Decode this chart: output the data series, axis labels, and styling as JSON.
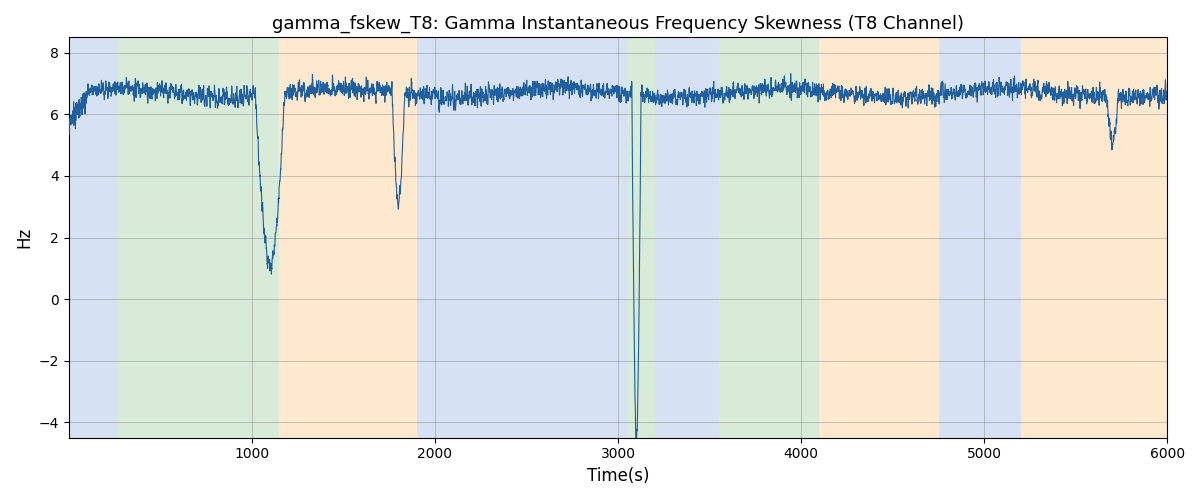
{
  "title": "gamma_fskew_T8: Gamma Instantaneous Frequency Skewness (T8 Channel)",
  "xlabel": "Time(s)",
  "ylabel": "Hz",
  "xlim": [
    0,
    6000
  ],
  "ylim": [
    -4.5,
    8.5
  ],
  "yticks": [
    -4,
    -2,
    0,
    2,
    4,
    6,
    8
  ],
  "xticks": [
    1000,
    2000,
    3000,
    4000,
    5000,
    6000
  ],
  "line_color": "#1f5f9e",
  "line_width": 0.8,
  "bg_regions": [
    {
      "start": 0,
      "end": 270,
      "color": "#aec6e8",
      "alpha": 0.5
    },
    {
      "start": 270,
      "end": 1150,
      "color": "#b2d8b2",
      "alpha": 0.5
    },
    {
      "start": 1150,
      "end": 1900,
      "color": "#ffd59e",
      "alpha": 0.5
    },
    {
      "start": 1900,
      "end": 3050,
      "color": "#aec6e8",
      "alpha": 0.5
    },
    {
      "start": 3050,
      "end": 3200,
      "color": "#b2d8b2",
      "alpha": 0.5
    },
    {
      "start": 3200,
      "end": 3550,
      "color": "#aec6e8",
      "alpha": 0.5
    },
    {
      "start": 3550,
      "end": 4100,
      "color": "#b2d8b2",
      "alpha": 0.5
    },
    {
      "start": 4100,
      "end": 4750,
      "color": "#ffd59e",
      "alpha": 0.5
    },
    {
      "start": 4750,
      "end": 5200,
      "color": "#aec6e8",
      "alpha": 0.5
    },
    {
      "start": 5200,
      "end": 6000,
      "color": "#ffd59e",
      "alpha": 0.5
    }
  ],
  "seed": 42,
  "n_points": 6000,
  "figsize": [
    12.0,
    5.0
  ],
  "dpi": 100
}
